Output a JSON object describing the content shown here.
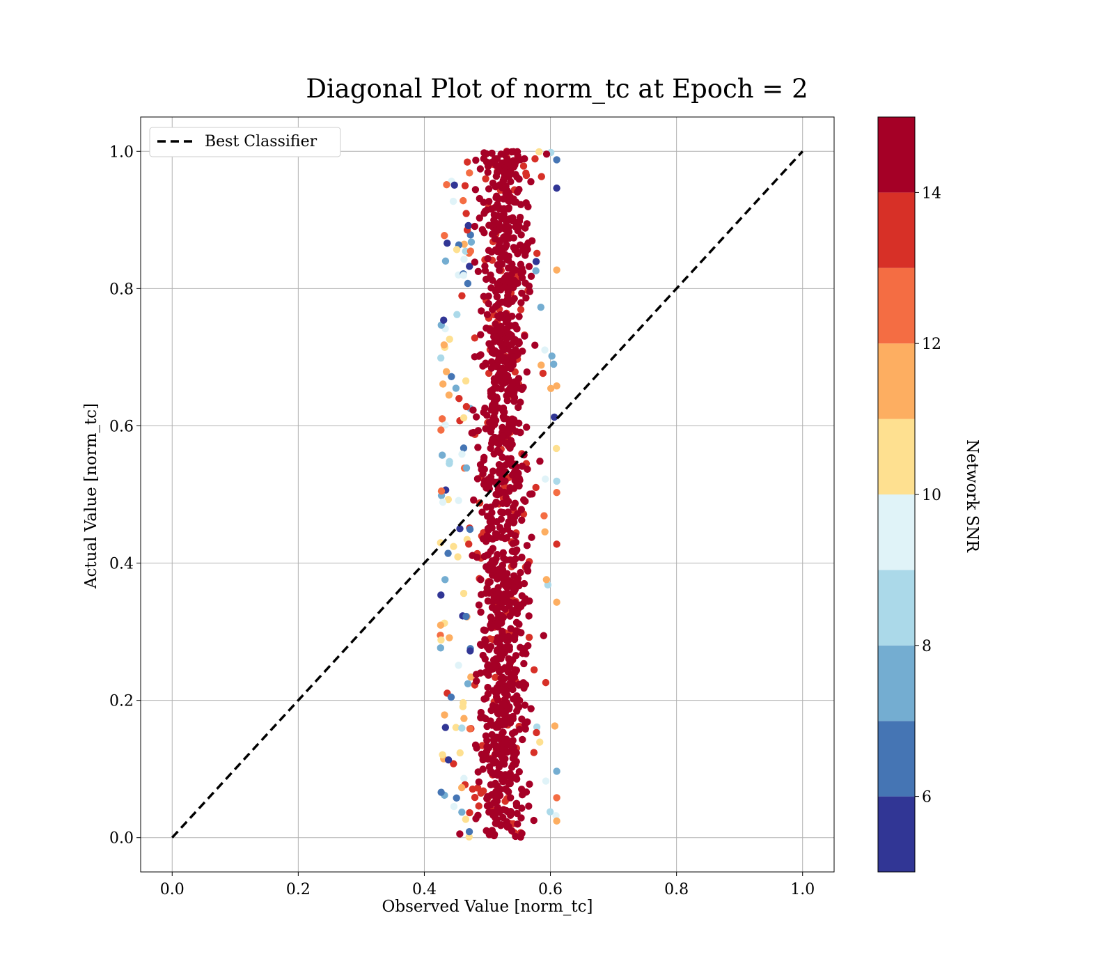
{
  "chart_data": {
    "type": "scatter",
    "title": "Diagonal Plot of norm_tc at Epoch = 2",
    "xlabel": "Observed Value [norm_tc]",
    "ylabel": "Actual Value [norm_tc]",
    "xlim": [
      -0.05,
      1.05
    ],
    "ylim": [
      -0.05,
      1.05
    ],
    "xticks": [
      "0.0",
      "0.2",
      "0.4",
      "0.6",
      "0.8",
      "1.0"
    ],
    "yticks": [
      "0.0",
      "0.2",
      "0.4",
      "0.6",
      "0.8",
      "1.0"
    ],
    "xtick_values": [
      0.0,
      0.2,
      0.4,
      0.6,
      0.8,
      1.0
    ],
    "ytick_values": [
      0.0,
      0.2,
      0.4,
      0.6,
      0.8,
      1.0
    ],
    "grid": true,
    "legend": {
      "placement": "top-left",
      "entries": [
        "Best Classifier"
      ]
    },
    "reference_line": {
      "name": "Best Classifier",
      "x": [
        0.0,
        1.0
      ],
      "y": [
        0.0,
        1.0
      ],
      "style": "dashed",
      "color": "#000000"
    },
    "scatter_summary": {
      "x_center": 0.525,
      "x_core_range": [
        0.47,
        0.58
      ],
      "x_outlier_range": [
        0.42,
        0.61
      ],
      "y_range": [
        0.0,
        1.0
      ],
      "dominant_color": "#a50026"
    },
    "colorbar": {
      "label": "Network SNR",
      "range": [
        5,
        15
      ],
      "tick_labels": [
        "6",
        "8",
        "10",
        "12",
        "14"
      ],
      "tick_values": [
        6,
        8,
        10,
        12,
        14
      ],
      "bands": [
        "#313695",
        "#4575b4",
        "#74add1",
        "#abd9e9",
        "#e0f3f8",
        "#fee090",
        "#fdae61",
        "#f46d43",
        "#d73027",
        "#a50026"
      ]
    }
  }
}
